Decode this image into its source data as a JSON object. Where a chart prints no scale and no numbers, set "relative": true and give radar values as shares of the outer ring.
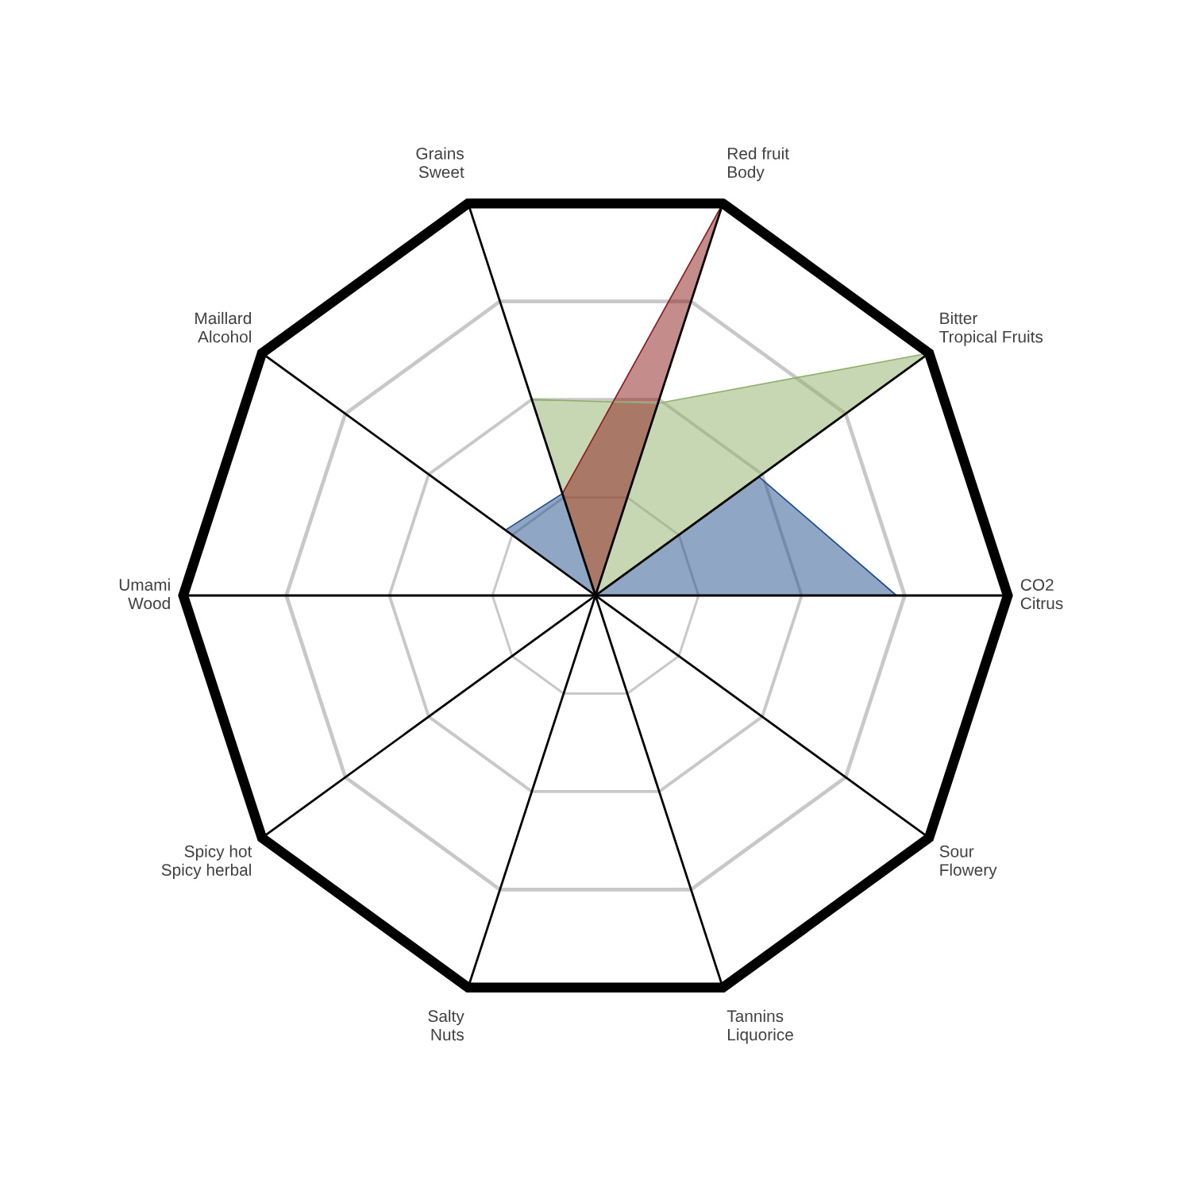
{
  "chart_data": {
    "type": "radar",
    "relative": true,
    "grid": true,
    "categories": [
      "Red fruit\nBody",
      "Bitter\nTropical Fruits",
      "CO2\nCitrus",
      "Sour\nFlowery",
      "Tannins\nLiquorice",
      "Salty\nNuts",
      "Spicy hot\nSpicy herbal",
      "Umami\nWood",
      "Maillard\nAlcohol",
      "Grains\nSweet"
    ],
    "series": [
      {
        "color": "#1f4e8c",
        "values": [
          0,
          0.49,
          0.73,
          0,
          0,
          0,
          0,
          0,
          0.27,
          0.26
        ]
      },
      {
        "color": "#8fb06a",
        "values": [
          0.49,
          1,
          0,
          0,
          0,
          0,
          0,
          0,
          0,
          0.5
        ]
      },
      {
        "color": "#8b1a1a",
        "values": [
          1,
          0,
          0,
          0,
          0,
          0,
          0,
          0,
          0,
          0.26
        ]
      }
    ]
  }
}
